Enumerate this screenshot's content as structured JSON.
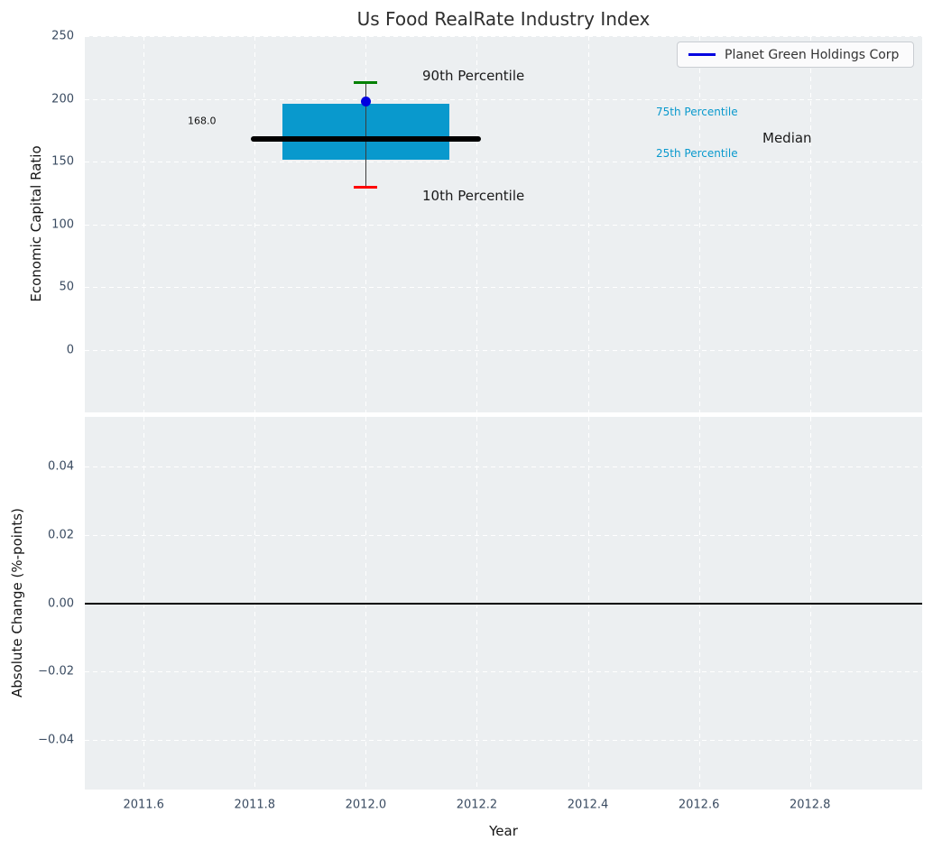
{
  "chart_data": {
    "type": "box",
    "title": "Us Food RealRate Industry Index",
    "xlabel": "Year",
    "xlim": [
      2011.494,
      2013.002
    ],
    "x_ticks": [
      {
        "v": 2011.6,
        "label": "2011.6"
      },
      {
        "v": 2011.8,
        "label": "2011.8"
      },
      {
        "v": 2012.0,
        "label": "2012.0"
      },
      {
        "v": 2012.2,
        "label": "2012.2"
      },
      {
        "v": 2012.4,
        "label": "2012.4"
      },
      {
        "v": 2012.6,
        "label": "2012.6"
      },
      {
        "v": 2012.8,
        "label": "2012.8"
      }
    ],
    "top_panel": {
      "ylabel": "Economic Capital Ratio",
      "ylim": [
        -49.5,
        250
      ],
      "grid": true,
      "y_ticks": [
        {
          "v": 250,
          "label": "250"
        },
        {
          "v": 200,
          "label": "200"
        },
        {
          "v": 150,
          "label": "150"
        },
        {
          "v": 100,
          "label": "100"
        },
        {
          "v": 50,
          "label": "50"
        },
        {
          "v": 0,
          "label": "0"
        }
      ],
      "box": {
        "x": 2012.0,
        "p10": 130,
        "p25": 151.5,
        "median": 168.0,
        "p75": 196,
        "p90": 213,
        "median_label": "168.0",
        "box_half_width_years": 0.15,
        "median_half_width_years": 0.207,
        "cap_half_width_years": 0.021
      },
      "company_point": {
        "x": 2012.0,
        "value": 198
      },
      "annotations": {
        "p90": "90th Percentile",
        "p10": "10th Percentile",
        "p75": "75th Percentile",
        "p25": "25th Percentile",
        "median": "Median"
      }
    },
    "bottom_panel": {
      "ylabel": "Absolute Change (%-points)",
      "ylim": [
        -0.0547,
        0.0547
      ],
      "grid": true,
      "y_ticks": [
        {
          "v": 0.04,
          "label": "0.04"
        },
        {
          "v": 0.02,
          "label": "0.02"
        },
        {
          "v": 0,
          "label": "0.00"
        },
        {
          "v": -0.02,
          "label": "−0.02"
        },
        {
          "v": -0.04,
          "label": "−0.04"
        }
      ],
      "zero_line": 0.0
    },
    "legend": {
      "label": "Planet Green Holdings Corp",
      "position": "upper right"
    },
    "colors": {
      "box_fill": "#0999cd",
      "median_line": "#000000",
      "p90_cap": "#008000",
      "p10_cap": "#ff0000",
      "company": "#0000e0",
      "percentile_label": "#0999cd",
      "plot_bg": "#eceff1",
      "grid": "#ffffff",
      "tick_text": "#3a4b61",
      "zero_line": "#000000"
    }
  }
}
